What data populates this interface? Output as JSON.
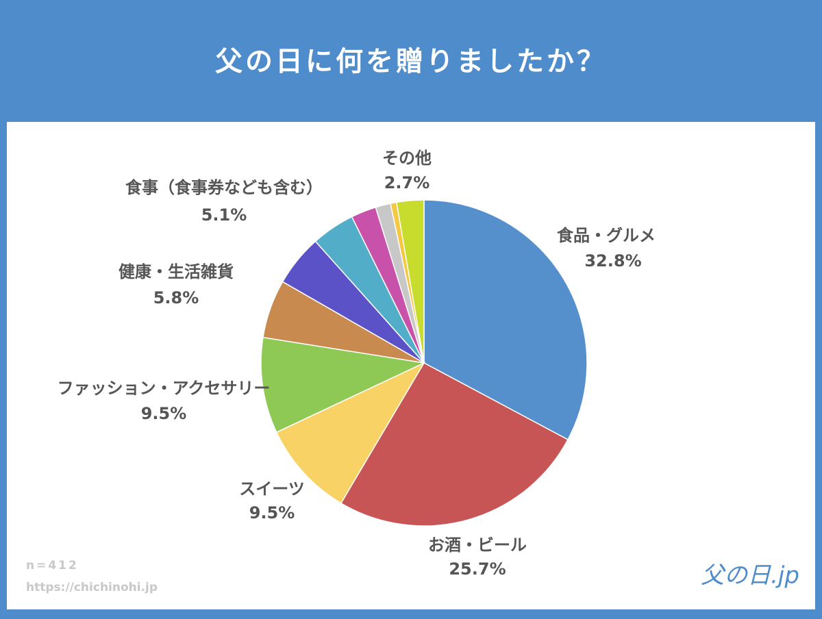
{
  "chart_data": {
    "type": "pie",
    "title": "父の日に何を贈りましたか？",
    "categories": [
      "食品・グルメ",
      "お酒・ビール",
      "スイーツ",
      "ファッション・アクセサリー",
      "健康・生活雑貨",
      "食事（食事券なども含む）",
      null,
      null,
      null,
      null,
      "その他"
    ],
    "values": [
      32.8,
      25.7,
      9.5,
      9.5,
      5.8,
      5.1,
      4.3,
      2.5,
      1.5,
      0.6,
      2.7
    ],
    "value_labels": [
      "32.8%",
      "25.7%",
      "9.5%",
      "9.5%",
      "5.8%",
      "5.1%",
      null,
      null,
      null,
      null,
      "2.7%"
    ],
    "colors": [
      "#5590cc",
      "#c85555",
      "#f9d265",
      "#8fc955",
      "#c98a50",
      "#5b52c8",
      "#52aec8",
      "#c852aa",
      "#c8c8c8",
      "#f5c842",
      "#c8dc2e"
    ],
    "note": "n=412",
    "source": "https://chichinohi.jp",
    "logo": "父の日.jp"
  }
}
